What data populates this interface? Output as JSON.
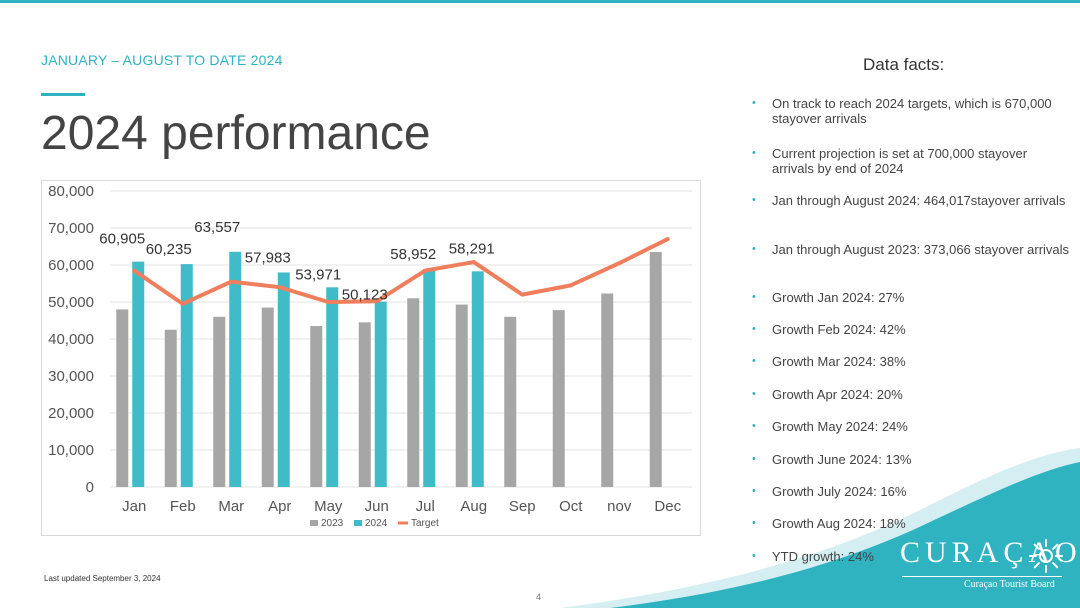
{
  "slide": {
    "subtitle": "JANUARY – AUGUST TO DATE 2024",
    "title": "2024 performance",
    "footer_note": "Last updated September 3,  2024",
    "page_number": "4"
  },
  "facts": {
    "title": "Data facts:",
    "items": [
      "On track to reach 2024 targets, which is 670,000 stayover arrivals",
      "Current projection is set at 700,000 stayover arrivals by end of 2024",
      "Jan through August 2024: 464,017stayover arrivals",
      "Jan through August 2023: 373,066 stayover arrivals",
      "Growth Jan 2024: 27%",
      "Growth Feb 2024: 42%",
      "Growth Mar 2024: 38%",
      "Growth Apr 2024: 20%",
      "Growth May 2024: 24%",
      "Growth June 2024: 13%",
      "Growth July 2024: 16%",
      "Growth Aug 2024: 18%",
      "YTD growth: 24%"
    ]
  },
  "logo": {
    "wordmark": "CURAÇAO",
    "tagline": "Curaçao Tourist Board",
    "icon": "sun-icon"
  },
  "colors": {
    "accent": "#2fb3c1",
    "bar_2023": "#a6a6a6",
    "bar_2024": "#3fbcc8",
    "target_line": "#ef7e5c",
    "text": "#444444"
  },
  "chart_data": {
    "type": "bar",
    "categories": [
      "Jan",
      "Feb",
      "Mar",
      "Apr",
      "May",
      "Jun",
      "Jul",
      "Aug",
      "Sep",
      "Oct",
      "nov",
      "Dec"
    ],
    "series": [
      {
        "name": "2023",
        "kind": "bar",
        "values": [
          48000,
          42500,
          46000,
          48500,
          43500,
          44500,
          51000,
          49300,
          46000,
          47800,
          52300,
          63500
        ]
      },
      {
        "name": "2024",
        "kind": "bar",
        "values": [
          60905,
          60235,
          63557,
          57983,
          53971,
          50123,
          58952,
          58291,
          null,
          null,
          null,
          null
        ]
      },
      {
        "name": "Target",
        "kind": "line",
        "values": [
          58500,
          49500,
          55500,
          54000,
          50000,
          50200,
          58500,
          60800,
          52000,
          54500,
          60500,
          67000
        ]
      }
    ],
    "data_labels": [
      "60,905",
      "60,235",
      "63,557",
      "57,983",
      "53,971",
      "50,123",
      "58,952",
      "58,291"
    ],
    "y_ticks": [
      "0",
      "10,000",
      "20,000",
      "30,000",
      "40,000",
      "50,000",
      "60,000",
      "70,000",
      "80,000"
    ],
    "ylim": [
      0,
      80000
    ],
    "grid": true,
    "legend_position": "bottom",
    "title": "",
    "xlabel": "",
    "ylabel": ""
  }
}
